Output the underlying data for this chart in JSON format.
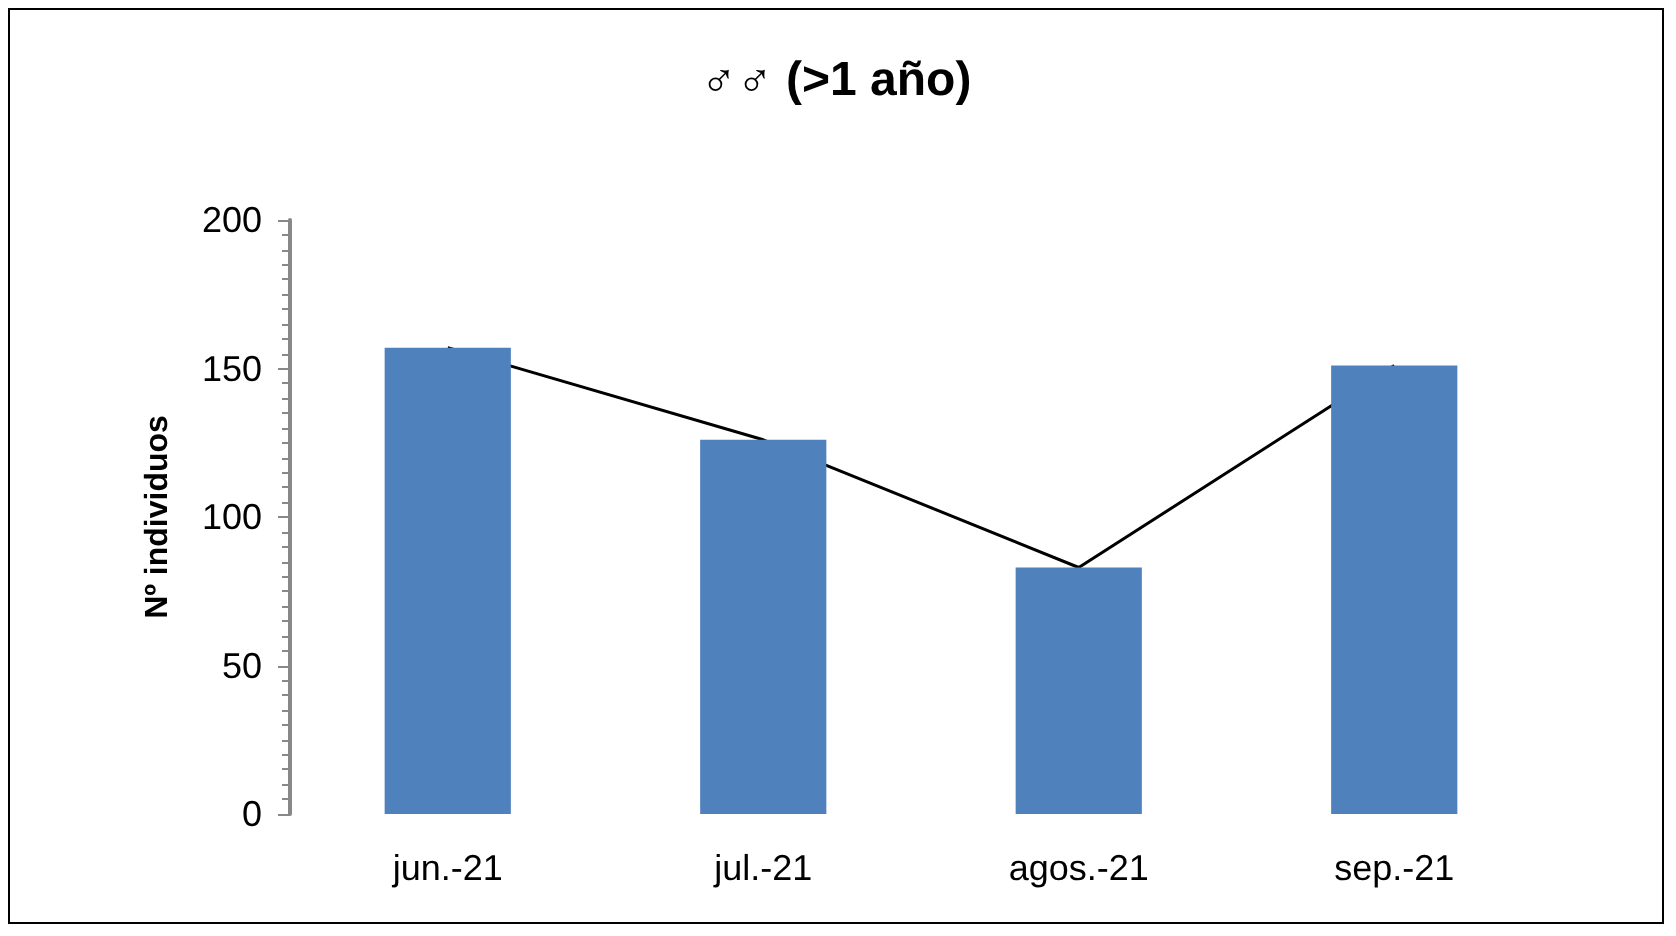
{
  "chart_data": {
    "type": "bar",
    "title": "♂♂ (>1 año)",
    "ylabel": "Nº individuos",
    "categories": [
      "jun.-21",
      "jul.-21",
      "agos.-21",
      "sep.-21"
    ],
    "series": [
      {
        "color": "#4f81bd",
        "values": [
          157,
          126,
          83,
          151
        ]
      },
      {
        "type": "line",
        "color": "#000000",
        "values": [
          157,
          126,
          83,
          151
        ]
      }
    ],
    "ylim": [
      0,
      200
    ],
    "yticks": [
      0,
      50,
      100,
      150,
      200
    ],
    "grid": false,
    "marker": "none",
    "line_style": "solid"
  }
}
